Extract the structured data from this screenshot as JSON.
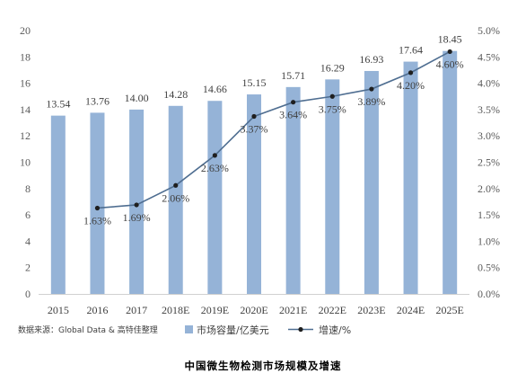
{
  "chart_data": {
    "type": "bar+line",
    "categories": [
      "2015",
      "2016",
      "2017",
      "2018E",
      "2019E",
      "2020E",
      "2021E",
      "2022E",
      "2023E",
      "2024E",
      "2025E"
    ],
    "series": [
      {
        "name": "市场容量/亿美元",
        "type": "bar",
        "axis": "left",
        "color": "#95B3D7",
        "values": [
          13.54,
          13.76,
          14.0,
          14.28,
          14.66,
          15.15,
          15.71,
          16.29,
          16.93,
          17.64,
          18.45
        ],
        "labels": [
          "13.54",
          "13.76",
          "14.00",
          "14.28",
          "14.66",
          "15.15",
          "15.71",
          "16.29",
          "16.93",
          "17.64",
          "18.45"
        ]
      },
      {
        "name": "增速/%",
        "type": "line",
        "axis": "right",
        "color": "#4F6E91",
        "values": [
          null,
          1.63,
          1.69,
          2.06,
          2.63,
          3.37,
          3.64,
          3.75,
          3.89,
          4.2,
          4.6
        ],
        "labels": [
          "",
          "1.63%",
          "1.69%",
          "2.06%",
          "2.63%",
          "3.37%",
          "3.64%",
          "3.75%",
          "3.89%",
          "4.20%",
          "4.60%"
        ]
      }
    ],
    "y_left": {
      "min": 0,
      "max": 20,
      "ticks": [
        "0",
        "2",
        "4",
        "6",
        "8",
        "10",
        "12",
        "14",
        "16",
        "18",
        "20"
      ]
    },
    "y_right": {
      "min": 0,
      "max": 5,
      "ticks": [
        "0.0%",
        "0.5%",
        "1.0%",
        "1.5%",
        "2.0%",
        "2.5%",
        "3.0%",
        "3.5%",
        "4.0%",
        "4.5%",
        "5.0%"
      ]
    },
    "grid": false,
    "legend_position": "bottom"
  },
  "source_note": "数据来源：Global Data & 高特佳整理",
  "caption": "中国微生物检测市场规模及增速"
}
